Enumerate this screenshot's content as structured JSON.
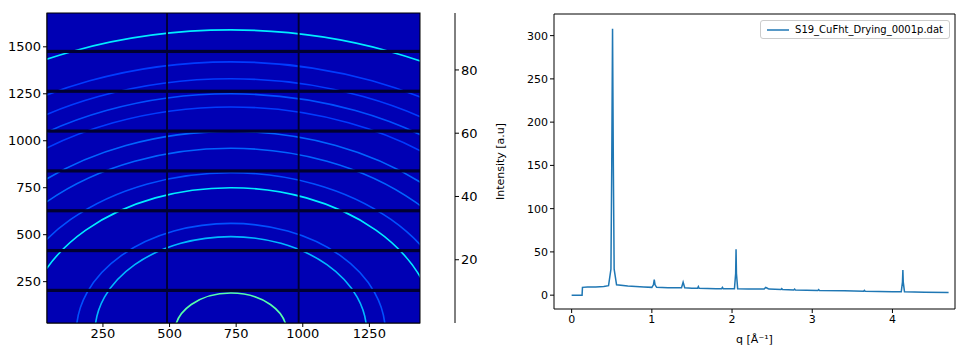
{
  "chart_data": [
    {
      "type": "heatmap",
      "xlim": [
        40,
        1440
      ],
      "ylim": [
        30,
        1680
      ],
      "xticks": [
        250,
        500,
        750,
        1000,
        1250
      ],
      "yticks": [
        250,
        500,
        750,
        1000,
        1250,
        1500
      ],
      "background": 5,
      "ring_center": [
        730,
        -20
      ],
      "rings": [
        {
          "radius": 210,
          "intensity": 45
        },
        {
          "radius": 510,
          "intensity": 30
        },
        {
          "radius": 580,
          "intensity": 20
        },
        {
          "radius": 770,
          "intensity": 35
        },
        {
          "radius": 850,
          "intensity": 20
        },
        {
          "radius": 980,
          "intensity": 22
        },
        {
          "radius": 1070,
          "intensity": 22
        },
        {
          "radius": 1200,
          "intensity": 18
        },
        {
          "radius": 1270,
          "intensity": 20
        },
        {
          "radius": 1350,
          "intensity": 18
        },
        {
          "radius": 1440,
          "intensity": 18
        },
        {
          "radius": 1610,
          "intensity": 35
        }
      ],
      "module_gaps": {
        "x": [
          [
            487,
            494
          ],
          [
            981,
            988
          ]
        ],
        "y": [
          [
            195,
            212
          ],
          [
            407,
            424
          ],
          [
            619,
            636
          ],
          [
            831,
            848
          ],
          [
            1043,
            1060
          ],
          [
            1255,
            1272
          ],
          [
            1467,
            1484
          ]
        ]
      },
      "colorbar_range": [
        0,
        98
      ],
      "colorbar_ticks": [
        20,
        40,
        60,
        80
      ]
    },
    {
      "type": "line",
      "xlabel": "q [Å⁻¹]",
      "ylabel": "Intensity [a.u]",
      "xlim": [
        -0.22,
        4.78
      ],
      "ylim": [
        -16,
        325
      ],
      "xticks": [
        0,
        1,
        2,
        3,
        4
      ],
      "yticks": [
        0,
        50,
        100,
        150,
        200,
        250,
        300
      ],
      "legend": "upper right",
      "x": [
        0,
        0.1,
        0.13,
        0.135,
        0.2,
        0.3,
        0.4,
        0.46,
        0.49,
        0.5,
        0.51,
        0.52,
        0.53,
        0.56,
        0.7,
        0.9,
        1.0,
        1.02,
        1.03,
        1.04,
        1.06,
        1.2,
        1.37,
        1.39,
        1.41,
        1.5,
        1.57,
        1.58,
        1.59,
        1.8,
        1.87,
        1.88,
        1.89,
        2.03,
        2.045,
        2.05,
        2.055,
        2.07,
        2.2,
        2.4,
        2.42,
        2.44,
        2.46,
        2.61,
        2.62,
        2.63,
        2.77,
        2.78,
        2.79,
        3.07,
        3.08,
        3.09,
        3.4,
        3.64,
        3.65,
        3.66,
        4.0,
        4.11,
        4.125,
        4.13,
        4.135,
        4.15,
        4.4,
        4.7
      ],
      "series": [
        {
          "name": "S19_CuFht_Drying_0001p.dat",
          "color": "#1f77b4",
          "values": [
            0,
            0,
            0,
            9,
            9.5,
            9.5,
            10,
            11,
            30,
            150,
            308,
            150,
            30,
            12,
            10.5,
            9.5,
            9,
            12,
            18,
            12,
            9,
            8.5,
            8.5,
            15,
            8.5,
            8,
            8,
            10,
            8,
            7.5,
            7.5,
            9,
            7.5,
            7.5,
            25,
            53,
            25,
            7.5,
            7,
            7,
            9,
            8,
            7,
            6.5,
            7.5,
            6.5,
            6,
            7,
            6,
            5.5,
            6.5,
            5.5,
            5,
            4.5,
            5.5,
            4.5,
            4,
            4,
            15,
            29,
            15,
            4,
            3.5,
            3
          ]
        }
      ]
    }
  ]
}
